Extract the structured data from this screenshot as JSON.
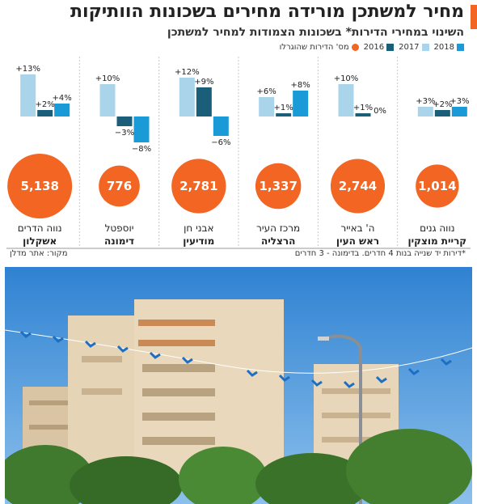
{
  "header": {
    "title": "מחיר למשתכן מורידה מחירים בשכונות הוותיקות",
    "subtitle": "השינוי במחירי הדירות* בשכונות הצמודות למחיר למשתכן"
  },
  "legend": {
    "items": [
      {
        "label": "2018",
        "color": "#1a9ad6"
      },
      {
        "label": "2017",
        "color": "#a9d4ea"
      },
      {
        "label": "2016",
        "color": "#1a5e7a"
      },
      {
        "label": "מס' הדירות שהוגרלו",
        "color": "#f26522"
      }
    ]
  },
  "chart_data": {
    "type": "bar",
    "title": "מחיר למשתכן מורידה מחירים בשכונות הוותיקות",
    "subtitle": "השינוי במחירי הדירות* בשכונות הצמודות למחיר למשתכן",
    "value_suffix": "%",
    "series": [
      {
        "name": "2017",
        "color": "#a9d4ea",
        "values": [
          3,
          10,
          6,
          12,
          10,
          13
        ]
      },
      {
        "name": "2016",
        "color": "#1a5e7a",
        "values": [
          2,
          1,
          1,
          9,
          -3,
          2
        ]
      },
      {
        "name": "2018",
        "color": "#1a9ad6",
        "values": [
          3,
          0,
          8,
          -6,
          -8,
          4
        ]
      }
    ],
    "bubble_label": "מס' הדירות שהוגרלו",
    "bubble_color": "#f26522",
    "groups": [
      {
        "neighborhood": "נווה גנים",
        "city": "קריית מוצקין",
        "apartments": "1,014",
        "apartments_value": 1014
      },
      {
        "neighborhood": "ה' באייר",
        "city": "ראש העין",
        "apartments": "2,744",
        "apartments_value": 2744
      },
      {
        "neighborhood": "מרכז העיר",
        "city": "הרצליה",
        "apartments": "1,337",
        "apartments_value": 1337
      },
      {
        "neighborhood": "אבני חן",
        "city": "מודיעין",
        "apartments": "2,781",
        "apartments_value": 2781
      },
      {
        "neighborhood": "יוספטל",
        "city": "דימונה",
        "apartments": "776",
        "apartments_value": 776
      },
      {
        "neighborhood": "נווה הדרים",
        "city": "אשקלון",
        "apartments": "5,138",
        "apartments_value": 5138
      }
    ]
  },
  "footer": {
    "note": "*דירות יד שנייה בנות 4 חדרים. בדימונה - 3 חדרים",
    "source": "מקור: אתר מדלן"
  },
  "photo": {
    "colors": {
      "sky": "#3d8fd8",
      "building": "#e3d1b3",
      "tree": "#3f7a2e",
      "flag": "#1d6fc4"
    }
  }
}
